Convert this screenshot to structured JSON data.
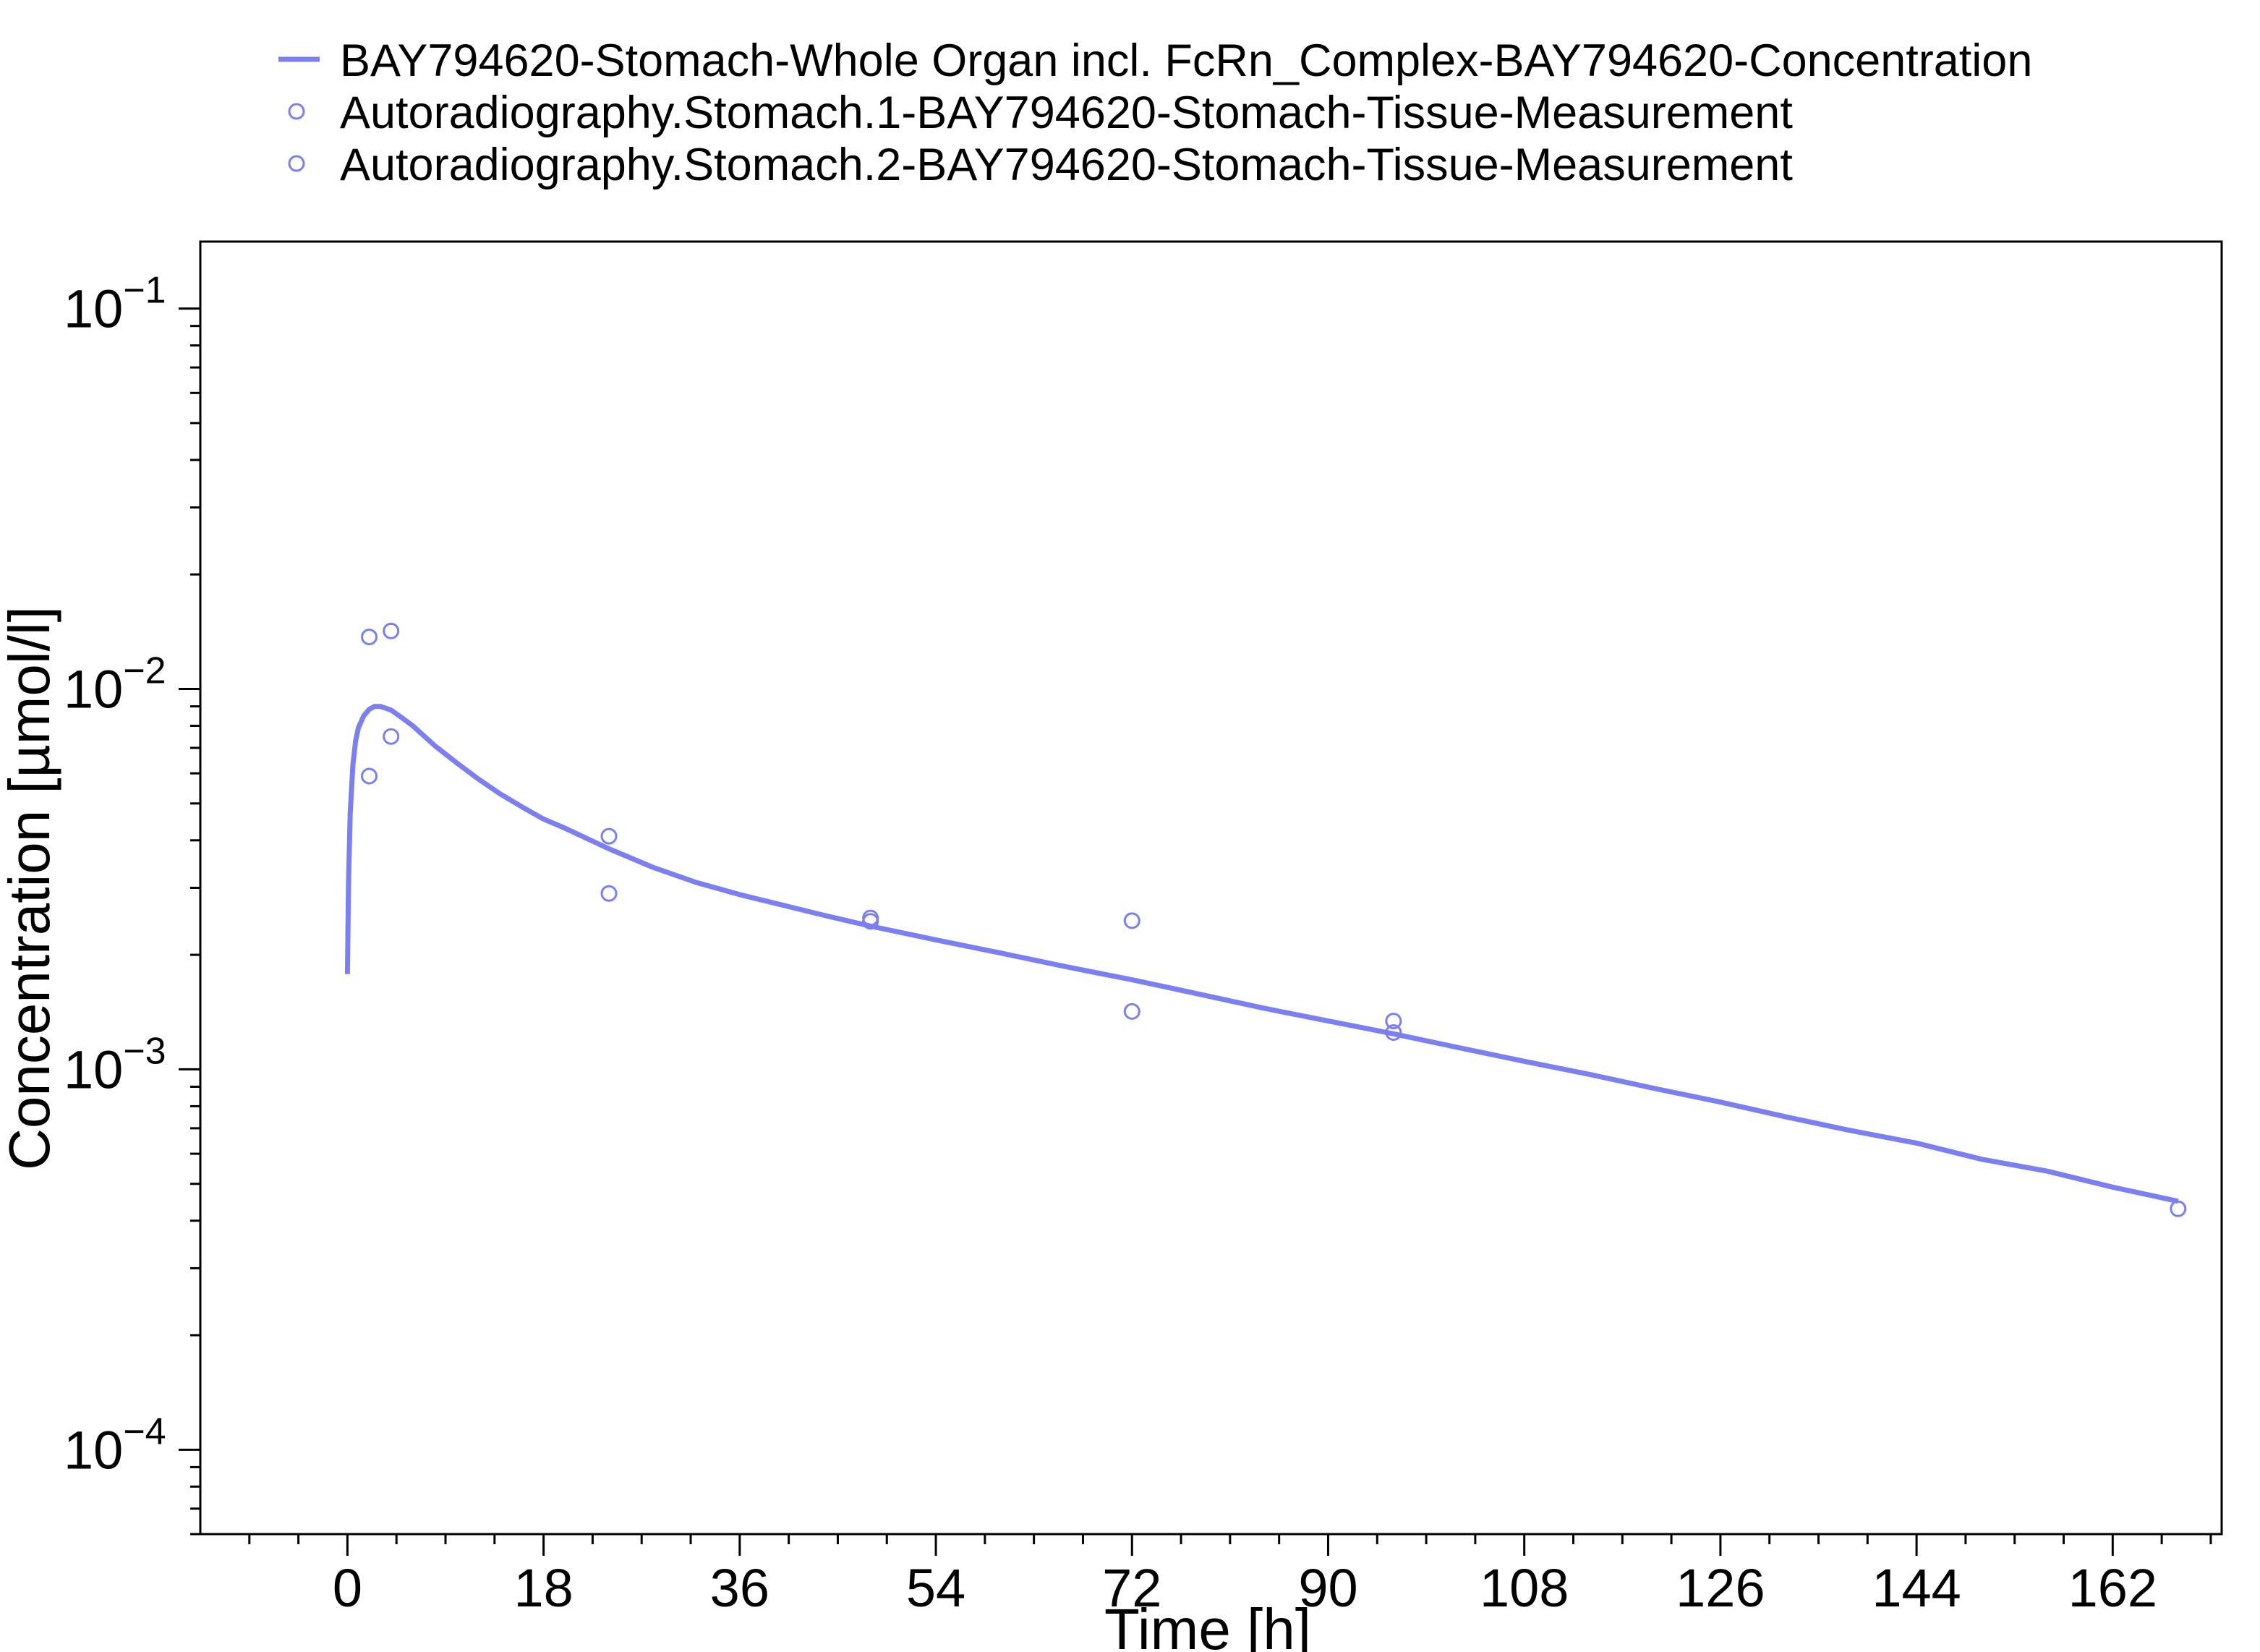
{
  "chart_data": {
    "type": "line",
    "xlabel": "Time [h]",
    "ylabel": "Concentration [µmol/l]",
    "xlim": [
      -13.5,
      172
    ],
    "ylim": [
      6e-05,
      0.15
    ],
    "yscale": "log",
    "xticks": [
      0,
      18,
      36,
      54,
      72,
      90,
      108,
      126,
      144,
      162
    ],
    "xtick_labels": [
      "0",
      "18",
      "36",
      "54",
      "72",
      "90",
      "108",
      "126",
      "144",
      "162"
    ],
    "yticks": [
      {
        "value": 0.1,
        "base": "10",
        "exp": "−1"
      },
      {
        "value": 0.01,
        "base": "10",
        "exp": "−2"
      },
      {
        "value": 0.001,
        "base": "10",
        "exp": "−3"
      },
      {
        "value": 0.0001,
        "base": "10",
        "exp": "−4"
      }
    ],
    "grid": false,
    "legend_position": "top",
    "series": [
      {
        "name": "BAY794620-Stomach-Whole Organ incl. FcRn_Complex-BAY794620-Concentration",
        "kind": "line",
        "color": "#7b7ff0",
        "x": [
          0,
          0.1,
          0.25,
          0.5,
          0.75,
          1,
          1.5,
          2,
          2.5,
          3,
          3.5,
          4,
          5,
          6,
          8,
          10,
          12,
          14,
          16,
          18,
          20,
          24,
          28,
          32,
          36,
          40,
          44,
          48,
          54,
          60,
          66,
          72,
          78,
          84,
          90,
          96,
          102,
          108,
          114,
          120,
          126,
          132,
          138,
          144,
          150,
          156,
          162,
          168
        ],
        "y": [
          0.00178,
          0.0031,
          0.0047,
          0.0063,
          0.0073,
          0.0079,
          0.0085,
          0.00884,
          0.009,
          0.009,
          0.0089,
          0.0088,
          0.0084,
          0.008,
          0.0071,
          0.0064,
          0.0058,
          0.0053,
          0.0049,
          0.00455,
          0.0043,
          0.0038,
          0.0034,
          0.0031,
          0.00288,
          0.0027,
          0.00253,
          0.00238,
          0.00219,
          0.00202,
          0.00186,
          0.00172,
          0.00158,
          0.00145,
          0.00134,
          0.00124,
          0.00114,
          0.00105,
          0.00097,
          0.00089,
          0.00082,
          0.00075,
          0.00069,
          0.00064,
          0.00058,
          0.00054,
          0.00049,
          0.00045
        ]
      },
      {
        "name": "Autoradiography.Stomach.1-BAY794620-Stomach-Tissue-Measurement",
        "kind": "scatter",
        "color": "#7b7ff0",
        "x": [
          2,
          4,
          24,
          48,
          72,
          96,
          168
        ],
        "y": [
          0.0137,
          0.0075,
          0.0041,
          0.0025,
          0.00246,
          0.00134,
          0.00043
        ]
      },
      {
        "name": "Autoradiography.Stomach.2-BAY794620-Stomach-Tissue-Measurement",
        "kind": "scatter",
        "color": "#7b7ff0",
        "x": [
          2,
          4,
          24,
          48,
          72,
          96
        ],
        "y": [
          0.0059,
          0.0142,
          0.0029,
          0.00245,
          0.00142,
          0.00125
        ]
      }
    ]
  }
}
